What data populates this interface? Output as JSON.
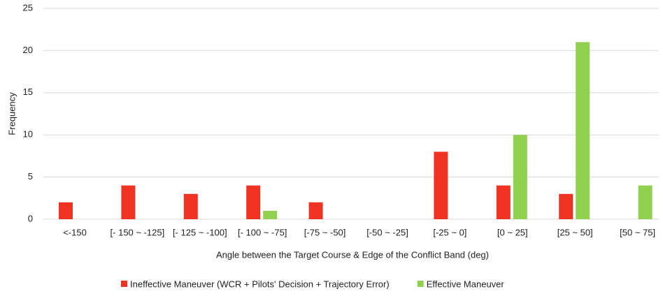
{
  "chart_data": {
    "type": "bar",
    "x_label": "Angle between the Target Course & Edge of the Conflict Band (deg)",
    "y_label": "Frequency",
    "categories": [
      "<-150",
      "[- 150 ~ -125]",
      "[- 125 ~ -100]",
      "[- 100  ~ -75]",
      "[-75 ~ -50]",
      "[-50 ~ -25]",
      "[-25 ~ 0]",
      "[0 ~ 25]",
      "[25 ~ 50]",
      "[50 ~ 75]"
    ],
    "series": [
      {
        "name": "Ineffective Maneuver (WCR + Pilots' Decision + Trajectory Error)",
        "color": "#f03223",
        "values": [
          2,
          4,
          3,
          4,
          2,
          0,
          8,
          4,
          3,
          0
        ]
      },
      {
        "name": "Effective Maneuver",
        "color": "#92d050",
        "values": [
          0,
          0,
          0,
          1,
          0,
          0,
          0,
          10,
          21,
          4
        ]
      }
    ],
    "ylim": [
      0,
      25
    ],
    "yticks": [
      0,
      5,
      10,
      15,
      20,
      25
    ],
    "grid": true,
    "legend": "bottom"
  }
}
